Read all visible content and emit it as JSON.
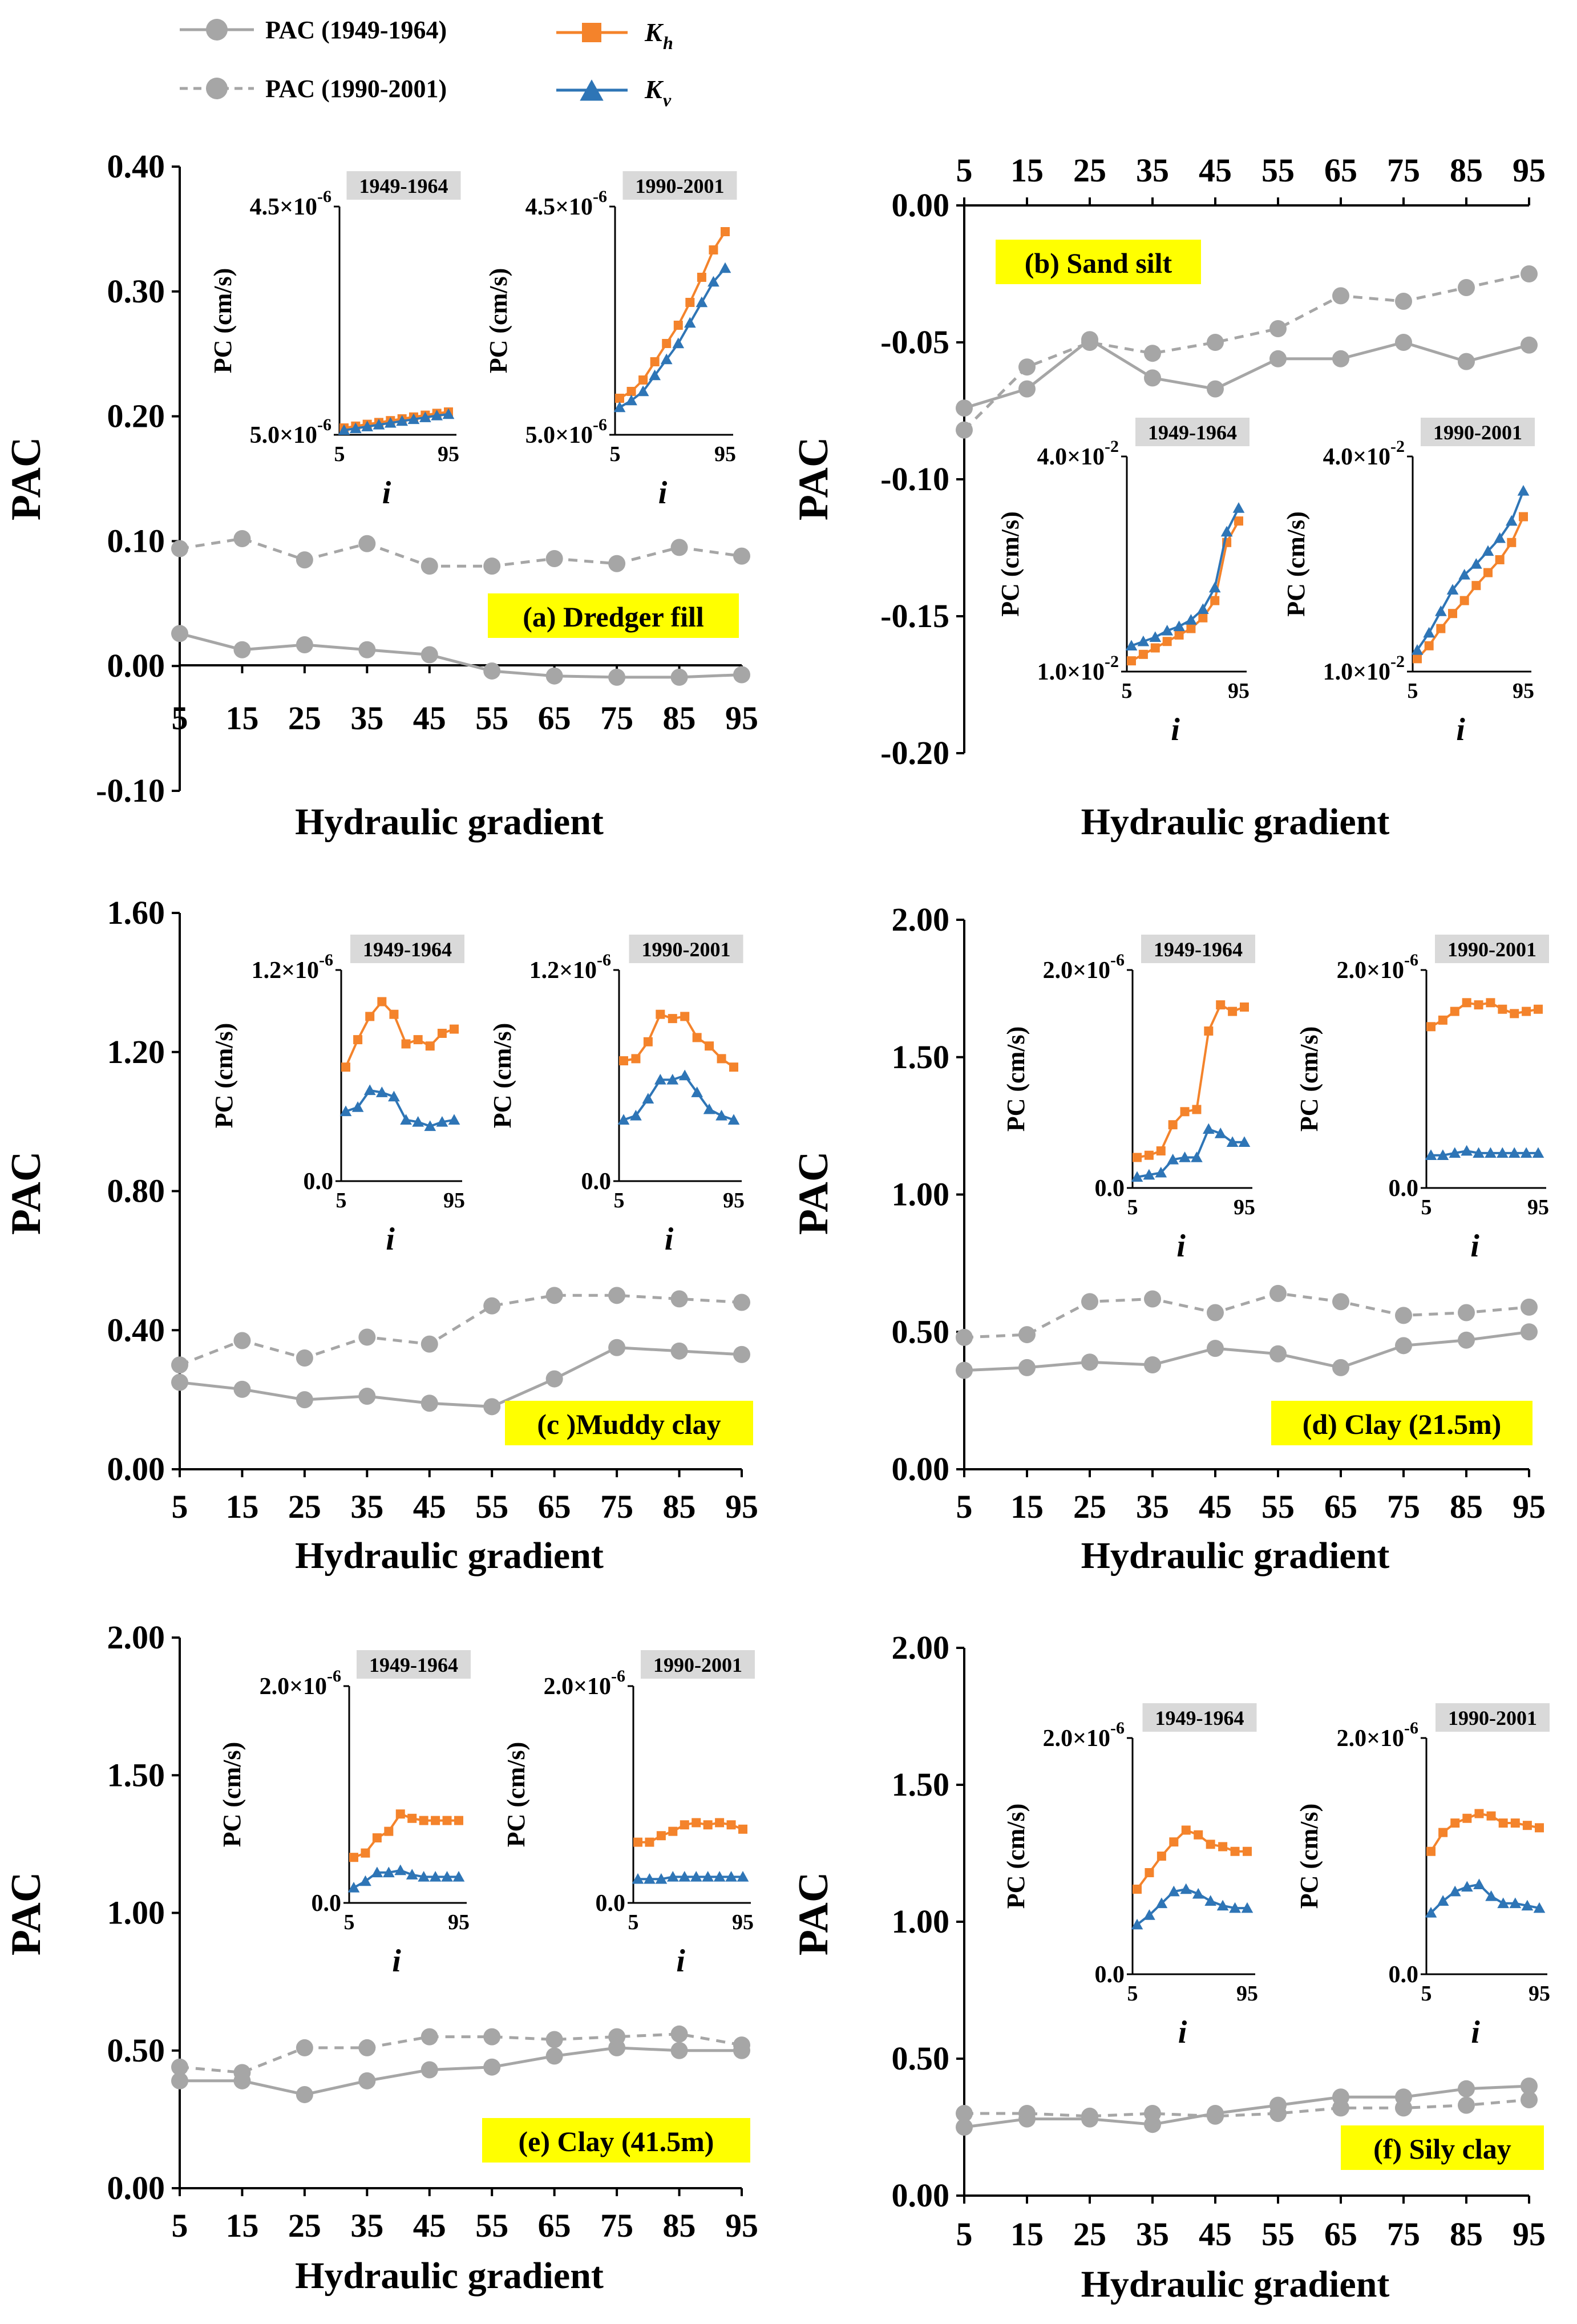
{
  "legend": {
    "items": [
      {
        "label": "PAC (1949-1964)",
        "style": "solid-gray"
      },
      {
        "label": "PAC (1990-2001)",
        "style": "dashed-gray"
      },
      {
        "label": "K",
        "sub": "h",
        "style": "orange-square"
      },
      {
        "label": "K",
        "sub": "v",
        "style": "blue-triangle"
      }
    ]
  },
  "colors": {
    "pac": "#a6a6a6",
    "kh": "#f4832b",
    "kv": "#2e75b6",
    "highlight": "#ffff00",
    "inset_tag": "#d9d9d9"
  },
  "chart_data": [
    {
      "type": "line",
      "panel": "a",
      "tag": "(a) Dredger fill",
      "ylabel": "PAC",
      "xlabel": "Hydraulic gradient",
      "x": [
        5,
        15,
        25,
        35,
        45,
        55,
        65,
        75,
        85,
        95
      ],
      "ylim": [
        -0.1,
        0.4
      ],
      "yticks": [
        "0.40",
        "0.30",
        "0.20",
        "0.10",
        "0.00",
        "-0.10"
      ],
      "ytick_values": [
        0.4,
        0.3,
        0.2,
        0.1,
        0.0,
        -0.1
      ],
      "series": [
        {
          "name": "PAC (1949-1964)",
          "values": [
            0.026,
            0.013,
            0.017,
            0.013,
            0.009,
            -0.004,
            -0.008,
            -0.009,
            -0.009,
            -0.007
          ]
        },
        {
          "name": "PAC (1990-2001)",
          "values": [
            0.094,
            0.102,
            0.085,
            0.098,
            0.08,
            0.08,
            0.086,
            0.082,
            0.095,
            0.088
          ]
        }
      ],
      "insets": [
        {
          "title": "1949-1964",
          "ylabel": "PC (cm/s)",
          "xlabel": "i",
          "ytop": "4.5×10",
          "ytop_exp": "-6",
          "ybot": "5.0×10",
          "ybot_exp": "-6",
          "xticks": [
            "5",
            "95"
          ],
          "kh": [
            0.03,
            0.038,
            0.046,
            0.054,
            0.062,
            0.07,
            0.078,
            0.086,
            0.094,
            0.1
          ],
          "kv": [
            0.02,
            0.028,
            0.036,
            0.044,
            0.052,
            0.06,
            0.068,
            0.076,
            0.084,
            0.09
          ]
        },
        {
          "title": "1990-2001",
          "ylabel": "PC (cm/s)",
          "xlabel": "i",
          "ytop": "4.5×10",
          "ytop_exp": "-6",
          "ybot": "5.0×10",
          "ybot_exp": "-6",
          "xticks": [
            "5",
            "95"
          ],
          "kh": [
            0.16,
            0.19,
            0.24,
            0.32,
            0.4,
            0.48,
            0.58,
            0.69,
            0.81,
            0.89
          ],
          "kv": [
            0.12,
            0.15,
            0.19,
            0.26,
            0.33,
            0.4,
            0.49,
            0.58,
            0.67,
            0.73
          ]
        }
      ]
    },
    {
      "type": "line",
      "panel": "b",
      "tag": "(b) Sand silt",
      "ylabel": "PAC",
      "xlabel": "Hydraulic gradient",
      "x": [
        5,
        15,
        25,
        35,
        45,
        55,
        65,
        75,
        85,
        95
      ],
      "ylim": [
        -0.2,
        0.0
      ],
      "yticks": [
        "0.00",
        "-0.05",
        "-0.10",
        "-0.15",
        "-0.20"
      ],
      "ytick_values": [
        0.0,
        -0.05,
        -0.1,
        -0.15,
        -0.2
      ],
      "x_axis_position": "top",
      "series": [
        {
          "name": "PAC (1949-1964)",
          "values": [
            -0.074,
            -0.067,
            -0.049,
            -0.063,
            -0.067,
            -0.056,
            -0.056,
            -0.05,
            -0.057,
            -0.051
          ]
        },
        {
          "name": "PAC (1990-2001)",
          "values": [
            -0.082,
            -0.059,
            -0.05,
            -0.054,
            -0.05,
            -0.045,
            -0.033,
            -0.035,
            -0.03,
            -0.025
          ]
        }
      ],
      "insets": [
        {
          "title": "1949-1964",
          "ylabel": "PC (cm/s)",
          "xlabel": "i",
          "ytop": "4.0×10",
          "ytop_exp": "-2",
          "ybot": "1.0×10",
          "ybot_exp": "-2",
          "xticks": [
            "5",
            "95"
          ],
          "kh": [
            0.05,
            0.08,
            0.11,
            0.14,
            0.17,
            0.2,
            0.25,
            0.33,
            0.6,
            0.7
          ],
          "kv": [
            0.12,
            0.14,
            0.16,
            0.19,
            0.21,
            0.24,
            0.29,
            0.39,
            0.65,
            0.76
          ]
        },
        {
          "title": "1990-2001",
          "ylabel": "PC (cm/s)",
          "xlabel": "i",
          "ytop": "4.0×10",
          "ytop_exp": "-2",
          "ybot": "1.0×10",
          "ybot_exp": "-2",
          "xticks": [
            "5",
            "95"
          ],
          "kh": [
            0.06,
            0.12,
            0.2,
            0.27,
            0.33,
            0.4,
            0.46,
            0.52,
            0.6,
            0.72
          ],
          "kv": [
            0.1,
            0.18,
            0.28,
            0.38,
            0.45,
            0.5,
            0.56,
            0.62,
            0.7,
            0.84
          ]
        }
      ]
    },
    {
      "type": "line",
      "panel": "c",
      "tag": "(c )Muddy clay",
      "ylabel": "PAC",
      "xlabel": "Hydraulic gradient",
      "x": [
        5,
        15,
        25,
        35,
        45,
        55,
        65,
        75,
        85,
        95
      ],
      "ylim": [
        0.0,
        1.6
      ],
      "yticks": [
        "1.60",
        "1.20",
        "0.80",
        "0.40",
        "0.00"
      ],
      "ytick_values": [
        1.6,
        1.2,
        0.8,
        0.4,
        0.0
      ],
      "series": [
        {
          "name": "PAC (1949-1964)",
          "values": [
            0.25,
            0.23,
            0.2,
            0.21,
            0.19,
            0.18,
            0.26,
            0.35,
            0.34,
            0.33
          ]
        },
        {
          "name": "PAC (1990-2001)",
          "values": [
            0.3,
            0.37,
            0.32,
            0.38,
            0.36,
            0.47,
            0.5,
            0.5,
            0.49,
            0.48
          ]
        }
      ],
      "insets": [
        {
          "title": "1949-1964",
          "ylabel": "PC (cm/s)",
          "xlabel": "i",
          "ytop": "1.2×10",
          "ytop_exp": "-6",
          "ybot": "0.0",
          "ybot_exp": "",
          "xticks": [
            "5",
            "95"
          ],
          "kh": [
            0.54,
            0.67,
            0.78,
            0.85,
            0.79,
            0.65,
            0.67,
            0.64,
            0.7,
            0.72
          ],
          "kv": [
            0.33,
            0.35,
            0.43,
            0.42,
            0.4,
            0.29,
            0.28,
            0.26,
            0.28,
            0.29
          ]
        },
        {
          "title": "1990-2001",
          "ylabel": "PC (cm/s)",
          "xlabel": "i",
          "ytop": "1.2×10",
          "ytop_exp": "-6",
          "ybot": "0.0",
          "ybot_exp": "",
          "xticks": [
            "5",
            "95"
          ],
          "kh": [
            0.57,
            0.58,
            0.66,
            0.79,
            0.77,
            0.78,
            0.68,
            0.64,
            0.58,
            0.54
          ],
          "kv": [
            0.29,
            0.31,
            0.39,
            0.48,
            0.48,
            0.5,
            0.42,
            0.34,
            0.31,
            0.29
          ]
        }
      ]
    },
    {
      "type": "line",
      "panel": "d",
      "tag": "(d) Clay (21.5m)",
      "ylabel": "PAC",
      "xlabel": "Hydraulic gradient",
      "x": [
        5,
        15,
        25,
        35,
        45,
        55,
        65,
        75,
        85,
        95
      ],
      "ylim": [
        0.0,
        2.0
      ],
      "yticks": [
        "2.00",
        "1.50",
        "1.00",
        "0.50",
        "0.00"
      ],
      "ytick_values": [
        2.0,
        1.5,
        1.0,
        0.5,
        0.0
      ],
      "series": [
        {
          "name": "PAC (1949-1964)",
          "values": [
            0.36,
            0.37,
            0.39,
            0.38,
            0.44,
            0.42,
            0.37,
            0.45,
            0.47,
            0.5
          ]
        },
        {
          "name": "PAC (1990-2001)",
          "values": [
            0.48,
            0.49,
            0.61,
            0.62,
            0.57,
            0.64,
            0.61,
            0.56,
            0.57,
            0.59
          ]
        }
      ],
      "insets": [
        {
          "title": "1949-1964",
          "ylabel": "PC (cm/s)",
          "xlabel": "i",
          "ytop": "2.0×10",
          "ytop_exp": "-6",
          "ybot": "0.0",
          "ybot_exp": "",
          "xticks": [
            "5",
            "95"
          ],
          "kh": [
            0.14,
            0.15,
            0.17,
            0.29,
            0.35,
            0.36,
            0.72,
            0.84,
            0.81,
            0.83
          ],
          "kv": [
            0.05,
            0.06,
            0.07,
            0.13,
            0.14,
            0.14,
            0.27,
            0.25,
            0.21,
            0.21
          ]
        },
        {
          "title": "1990-2001",
          "ylabel": "PC (cm/s)",
          "xlabel": "i",
          "ytop": "2.0×10",
          "ytop_exp": "-6",
          "ybot": "0.0",
          "ybot_exp": "",
          "xticks": [
            "5",
            "95"
          ],
          "kh": [
            0.74,
            0.77,
            0.81,
            0.85,
            0.84,
            0.85,
            0.82,
            0.8,
            0.81,
            0.82
          ],
          "kv": [
            0.15,
            0.15,
            0.16,
            0.17,
            0.16,
            0.16,
            0.16,
            0.16,
            0.16,
            0.16
          ]
        }
      ]
    },
    {
      "type": "line",
      "panel": "e",
      "tag": "(e) Clay (41.5m)",
      "ylabel": "PAC",
      "xlabel": "Hydraulic gradient",
      "x": [
        5,
        15,
        25,
        35,
        45,
        55,
        65,
        75,
        85,
        95
      ],
      "ylim": [
        0.0,
        2.0
      ],
      "yticks": [
        "2.00",
        "1.50",
        "1.00",
        "0.50",
        "0.00"
      ],
      "ytick_values": [
        2.0,
        1.5,
        1.0,
        0.5,
        0.0
      ],
      "series": [
        {
          "name": "PAC (1949-1964)",
          "values": [
            0.39,
            0.39,
            0.34,
            0.39,
            0.43,
            0.44,
            0.48,
            0.51,
            0.5,
            0.5
          ]
        },
        {
          "name": "PAC (1990-2001)",
          "values": [
            0.44,
            0.42,
            0.51,
            0.51,
            0.55,
            0.55,
            0.54,
            0.55,
            0.56,
            0.52
          ]
        }
      ],
      "insets": [
        {
          "title": "1949-1964",
          "ylabel": "PC (cm/s)",
          "xlabel": "i",
          "ytop": "2.0×10",
          "ytop_exp": "-6",
          "ybot": "0.0",
          "ybot_exp": "",
          "xticks": [
            "5",
            "95"
          ],
          "kh": [
            0.21,
            0.23,
            0.3,
            0.33,
            0.41,
            0.39,
            0.38,
            0.38,
            0.38,
            0.38
          ],
          "kv": [
            0.07,
            0.1,
            0.14,
            0.14,
            0.15,
            0.13,
            0.12,
            0.12,
            0.12,
            0.12
          ]
        },
        {
          "title": "1990-2001",
          "ylabel": "PC (cm/s)",
          "xlabel": "i",
          "ytop": "2.0×10",
          "ytop_exp": "-6",
          "ybot": "0.0",
          "ybot_exp": "",
          "xticks": [
            "5",
            "95"
          ],
          "kh": [
            0.28,
            0.28,
            0.31,
            0.33,
            0.36,
            0.37,
            0.36,
            0.37,
            0.36,
            0.34
          ],
          "kv": [
            0.11,
            0.11,
            0.11,
            0.12,
            0.12,
            0.12,
            0.12,
            0.12,
            0.12,
            0.12
          ]
        }
      ]
    },
    {
      "type": "line",
      "panel": "f",
      "tag": "(f) Sily clay",
      "ylabel": "PAC",
      "xlabel": "Hydraulic gradient",
      "x": [
        5,
        15,
        25,
        35,
        45,
        55,
        65,
        75,
        85,
        95
      ],
      "ylim": [
        0.0,
        2.0
      ],
      "yticks": [
        "2.00",
        "1.50",
        "1.00",
        "0.50",
        "0.00"
      ],
      "ytick_values": [
        2.0,
        1.5,
        1.0,
        0.5,
        0.0
      ],
      "series": [
        {
          "name": "PAC (1949-1964)",
          "values": [
            0.25,
            0.28,
            0.28,
            0.26,
            0.3,
            0.33,
            0.36,
            0.36,
            0.39,
            0.4
          ]
        },
        {
          "name": "PAC (1990-2001)",
          "values": [
            0.3,
            0.3,
            0.29,
            0.3,
            0.29,
            0.3,
            0.32,
            0.32,
            0.33,
            0.35
          ]
        }
      ],
      "insets": [
        {
          "title": "1949-1964",
          "ylabel": "PC (cm/s)",
          "xlabel": "i",
          "ytop": "2.0×10",
          "ytop_exp": "-6",
          "ybot": "0.0",
          "ybot_exp": "",
          "xticks": [
            "5",
            "95"
          ],
          "kh": [
            0.36,
            0.43,
            0.5,
            0.56,
            0.61,
            0.59,
            0.55,
            0.54,
            0.52,
            0.52
          ],
          "kv": [
            0.21,
            0.25,
            0.3,
            0.35,
            0.36,
            0.34,
            0.31,
            0.29,
            0.28,
            0.28
          ]
        },
        {
          "title": "1990-2001",
          "ylabel": "PC (cm/s)",
          "xlabel": "i",
          "ytop": "2.0×10",
          "ytop_exp": "-6",
          "ybot": "0.0",
          "ybot_exp": "",
          "xticks": [
            "5",
            "95"
          ],
          "kh": [
            0.52,
            0.6,
            0.64,
            0.66,
            0.68,
            0.67,
            0.64,
            0.64,
            0.63,
            0.62
          ],
          "kv": [
            0.26,
            0.31,
            0.35,
            0.37,
            0.38,
            0.33,
            0.3,
            0.3,
            0.29,
            0.28
          ]
        }
      ]
    }
  ]
}
